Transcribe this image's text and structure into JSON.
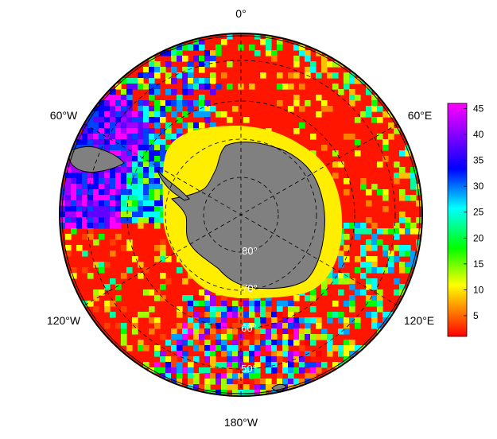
{
  "map": {
    "projection": "south-polar-stereographic",
    "lon_labels": [
      {
        "key": "0",
        "text": "0°"
      },
      {
        "key": "60E",
        "text": "60°E"
      },
      {
        "key": "120E",
        "text": "120°E"
      },
      {
        "key": "180",
        "text": "180°W"
      },
      {
        "key": "120W",
        "text": "120°W"
      },
      {
        "key": "60W",
        "text": "60°W"
      }
    ],
    "lat_labels": [
      {
        "key": "80",
        "text": "80°"
      },
      {
        "key": "70",
        "text": "70°"
      },
      {
        "key": "60",
        "text": "60°"
      },
      {
        "key": "50",
        "text": "50°"
      }
    ],
    "land_color": "#808080",
    "sea_ice_color": "#ffee00",
    "ocean_default_color": "#ff1500"
  },
  "colorbar": {
    "ticks": [
      {
        "value": 5,
        "text": "5"
      },
      {
        "value": 10,
        "text": "10"
      },
      {
        "value": 15,
        "text": "15"
      },
      {
        "value": 20,
        "text": "20"
      },
      {
        "value": 25,
        "text": "25"
      },
      {
        "value": 30,
        "text": "30"
      },
      {
        "value": 35,
        "text": "35"
      },
      {
        "value": 40,
        "text": "40"
      },
      {
        "value": 45,
        "text": "45"
      }
    ],
    "range": [
      1,
      46
    ],
    "palette": [
      "#ff0000",
      "#ff8000",
      "#ffff00",
      "#00ff00",
      "#00ffff",
      "#0000ff",
      "#8000ff",
      "#ff00ff"
    ]
  }
}
